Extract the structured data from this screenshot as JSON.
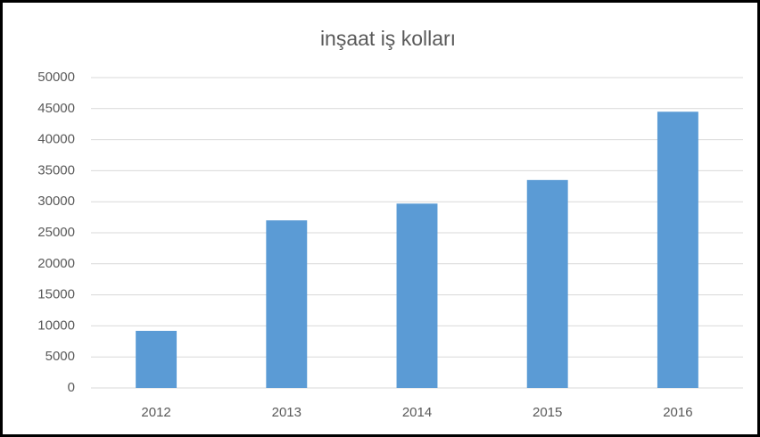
{
  "chart_data": {
    "type": "bar",
    "title": "inşaat iş kolları",
    "categories": [
      "2012",
      "2013",
      "2014",
      "2015",
      "2016"
    ],
    "values": [
      9200,
      27000,
      29700,
      33500,
      44500
    ],
    "color": "#5b9bd5",
    "ylim": [
      0,
      50000
    ],
    "yticks": [
      0,
      5000,
      10000,
      15000,
      20000,
      25000,
      30000,
      35000,
      40000,
      45000,
      50000
    ],
    "grid": true
  }
}
